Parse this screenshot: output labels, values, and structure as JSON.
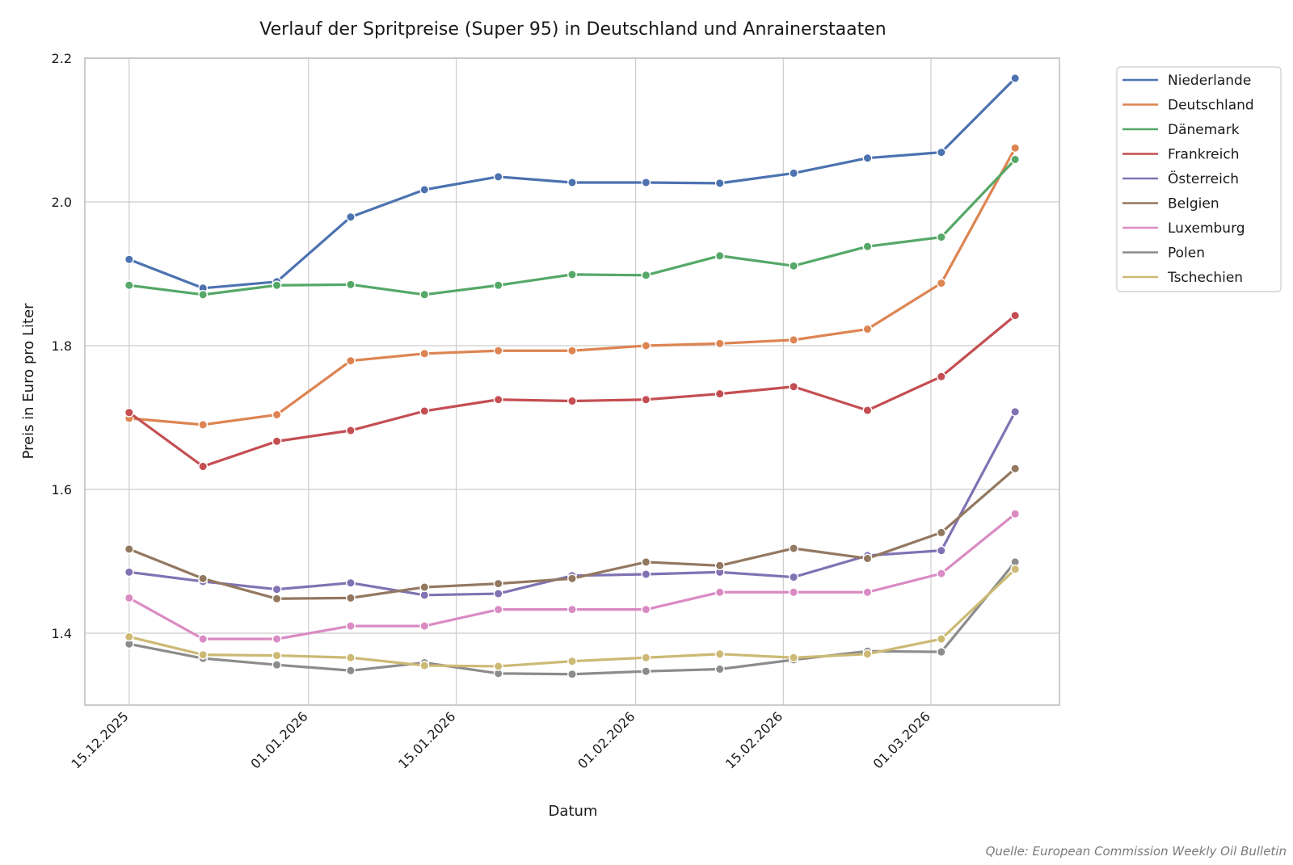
{
  "chart_data": {
    "type": "line",
    "title": "Verlauf der Spritpreise (Super 95) in Deutschland und Anrainerstaaten",
    "xlabel": "Datum",
    "ylabel": "Preis in Euro pro Liter",
    "source": "Quelle: European Commission Weekly Oil Bulletin",
    "x_dates": [
      "15.12.2025",
      "22.12.2025",
      "29.12.2025",
      "05.01.2026",
      "12.01.2026",
      "19.01.2026",
      "26.01.2026",
      "02.02.2026",
      "09.02.2026",
      "16.02.2026",
      "23.02.2026",
      "02.03.2026",
      "09.03.2026"
    ],
    "x_index_range": [
      -0.6,
      12.6
    ],
    "x_ticks": [
      {
        "label": "15.12.2025",
        "pos": 0
      },
      {
        "label": "01.01.2026",
        "pos": 2.43
      },
      {
        "label": "15.01.2026",
        "pos": 4.43
      },
      {
        "label": "01.02.2026",
        "pos": 6.86
      },
      {
        "label": "15.02.2026",
        "pos": 8.86
      },
      {
        "label": "01.03.2026",
        "pos": 10.86
      }
    ],
    "ylim": [
      1.3,
      2.2
    ],
    "y_ticks": [
      1.4,
      1.6,
      1.8,
      2.0,
      2.2
    ],
    "y_tick_labels": [
      "1.4",
      "1.6",
      "1.8",
      "2.0",
      "2.2"
    ],
    "grid": true,
    "legend_position": "outside-top-right",
    "series": [
      {
        "name": "Niederlande",
        "color": "#4c72b0",
        "values": [
          1.92,
          1.88,
          1.889,
          1.979,
          2.017,
          2.035,
          2.027,
          2.027,
          2.026,
          2.04,
          2.061,
          2.069,
          2.172
        ]
      },
      {
        "name": "Deutschland",
        "color": "#dd8452",
        "values": [
          1.699,
          1.69,
          1.704,
          1.779,
          1.789,
          1.793,
          1.793,
          1.8,
          1.803,
          1.808,
          1.823,
          1.887,
          2.075
        ]
      },
      {
        "name": "Dänemark",
        "color": "#55a868",
        "values": [
          1.884,
          1.871,
          1.884,
          1.885,
          1.871,
          1.884,
          1.899,
          1.898,
          1.925,
          1.911,
          1.938,
          1.951,
          2.059
        ]
      },
      {
        "name": "Frankreich",
        "color": "#c44e52",
        "values": [
          1.707,
          1.632,
          1.667,
          1.682,
          1.709,
          1.725,
          1.723,
          1.725,
          1.733,
          1.743,
          1.71,
          1.757,
          1.842
        ]
      },
      {
        "name": "Österreich",
        "color": "#8172b3",
        "values": [
          1.485,
          1.472,
          1.461,
          1.47,
          1.453,
          1.455,
          1.48,
          1.482,
          1.485,
          1.478,
          1.508,
          1.515,
          1.708
        ]
      },
      {
        "name": "Belgien",
        "color": "#937860",
        "values": [
          1.517,
          1.476,
          1.448,
          1.449,
          1.464,
          1.469,
          1.476,
          1.499,
          1.494,
          1.518,
          1.504,
          1.54,
          1.629
        ]
      },
      {
        "name": "Luxemburg",
        "color": "#da8bc3",
        "values": [
          1.449,
          1.392,
          1.392,
          1.41,
          1.41,
          1.433,
          1.433,
          1.433,
          1.457,
          1.457,
          1.457,
          1.483,
          1.566
        ]
      },
      {
        "name": "Polen",
        "color": "#8c8c8c",
        "values": [
          1.385,
          1.365,
          1.356,
          1.348,
          1.359,
          1.344,
          1.343,
          1.347,
          1.35,
          1.363,
          1.375,
          1.374,
          1.499
        ]
      },
      {
        "name": "Tschechien",
        "color": "#ccb974",
        "values": [
          1.395,
          1.37,
          1.369,
          1.366,
          1.355,
          1.354,
          1.361,
          1.366,
          1.371,
          1.366,
          1.371,
          1.392,
          1.489
        ]
      }
    ]
  },
  "colors": {
    "grid": "#cccccc",
    "spine": "#bbbbbb",
    "marker_edge": "#ffffff",
    "text": "#1a1a1a",
    "source_text": "#7a7a7a"
  }
}
